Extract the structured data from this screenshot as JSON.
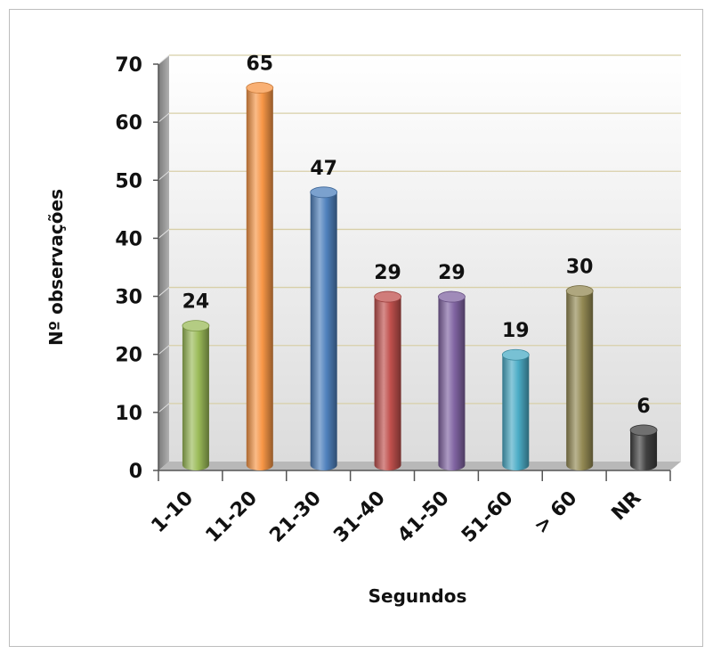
{
  "chart_data": {
    "type": "bar",
    "title": "",
    "xlabel": "Segundos",
    "ylabel": "Nº observações",
    "categories": [
      "1-10",
      "11-20",
      "21-30",
      "31-40",
      "41-50",
      "51-60",
      "> 60",
      "NR"
    ],
    "values": [
      24,
      65,
      47,
      29,
      29,
      19,
      30,
      6
    ],
    "colors": [
      "#9BBB59",
      "#F79646",
      "#4F81BD",
      "#C0504D",
      "#8064A2",
      "#4BACC6",
      "#948A54",
      "#404040"
    ],
    "ylim": [
      0,
      70
    ],
    "yticks": [
      0,
      10,
      20,
      30,
      40,
      50,
      60,
      70
    ],
    "grid": true,
    "style": "3d-cylinder"
  }
}
